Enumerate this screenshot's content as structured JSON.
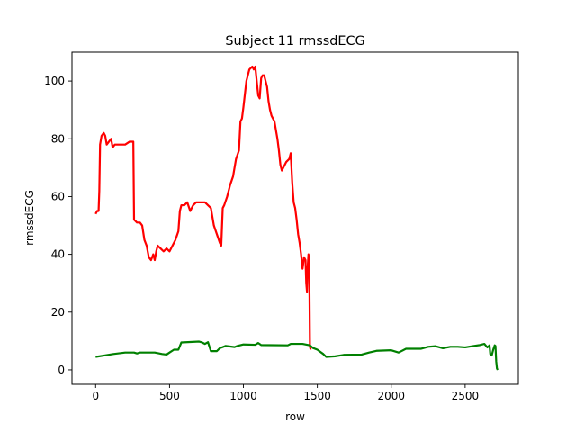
{
  "chart_data": {
    "type": "line",
    "title": "Subject 11 rmssdECG",
    "xlabel": "row",
    "ylabel": "rmssdECG",
    "xlim": [
      -160,
      2860
    ],
    "ylim": [
      -5,
      110
    ],
    "xticks": [
      0,
      500,
      1000,
      1500,
      2000,
      2500
    ],
    "yticks": [
      0,
      20,
      40,
      60,
      80,
      100
    ],
    "grid": false,
    "legend": "none",
    "series": [
      {
        "color": "#ff0000",
        "points": [
          [
            0,
            54
          ],
          [
            10,
            55
          ],
          [
            20,
            55
          ],
          [
            25,
            62
          ],
          [
            30,
            78
          ],
          [
            40,
            81
          ],
          [
            55,
            82
          ],
          [
            65,
            81
          ],
          [
            75,
            78
          ],
          [
            90,
            79
          ],
          [
            105,
            80
          ],
          [
            115,
            77
          ],
          [
            130,
            78
          ],
          [
            160,
            78
          ],
          [
            200,
            78
          ],
          [
            230,
            79
          ],
          [
            255,
            79
          ],
          [
            260,
            52
          ],
          [
            280,
            51
          ],
          [
            300,
            51
          ],
          [
            315,
            50
          ],
          [
            330,
            45
          ],
          [
            345,
            43
          ],
          [
            360,
            39
          ],
          [
            375,
            38
          ],
          [
            390,
            40
          ],
          [
            400,
            38
          ],
          [
            410,
            41
          ],
          [
            420,
            43
          ],
          [
            440,
            42
          ],
          [
            460,
            41
          ],
          [
            480,
            42
          ],
          [
            500,
            41
          ],
          [
            520,
            43
          ],
          [
            540,
            45
          ],
          [
            560,
            48
          ],
          [
            570,
            55
          ],
          [
            580,
            57
          ],
          [
            600,
            57
          ],
          [
            620,
            58
          ],
          [
            640,
            55
          ],
          [
            660,
            57
          ],
          [
            680,
            58
          ],
          [
            710,
            58
          ],
          [
            740,
            58
          ],
          [
            760,
            57
          ],
          [
            780,
            56
          ],
          [
            800,
            50
          ],
          [
            820,
            47
          ],
          [
            840,
            44
          ],
          [
            850,
            43
          ],
          [
            860,
            56
          ],
          [
            870,
            57
          ],
          [
            890,
            60
          ],
          [
            910,
            64
          ],
          [
            930,
            67
          ],
          [
            950,
            73
          ],
          [
            970,
            76
          ],
          [
            980,
            86
          ],
          [
            990,
            87
          ],
          [
            1000,
            91
          ],
          [
            1020,
            100
          ],
          [
            1040,
            104
          ],
          [
            1060,
            105
          ],
          [
            1070,
            104
          ],
          [
            1080,
            105
          ],
          [
            1090,
            100
          ],
          [
            1100,
            95
          ],
          [
            1110,
            94
          ],
          [
            1120,
            101
          ],
          [
            1130,
            102
          ],
          [
            1140,
            102
          ],
          [
            1150,
            100
          ],
          [
            1160,
            98
          ],
          [
            1170,
            93
          ],
          [
            1180,
            90
          ],
          [
            1190,
            88
          ],
          [
            1210,
            86
          ],
          [
            1230,
            80
          ],
          [
            1240,
            76
          ],
          [
            1250,
            71
          ],
          [
            1260,
            69
          ],
          [
            1270,
            70
          ],
          [
            1290,
            72
          ],
          [
            1310,
            73
          ],
          [
            1320,
            75
          ],
          [
            1330,
            65
          ],
          [
            1340,
            58
          ],
          [
            1350,
            56
          ],
          [
            1360,
            52
          ],
          [
            1370,
            47
          ],
          [
            1380,
            44
          ],
          [
            1390,
            40
          ],
          [
            1400,
            35
          ],
          [
            1410,
            39
          ],
          [
            1420,
            38
          ],
          [
            1425,
            30
          ],
          [
            1430,
            27
          ],
          [
            1435,
            36
          ],
          [
            1440,
            40
          ],
          [
            1445,
            38
          ],
          [
            1450,
            8
          ],
          [
            1455,
            7
          ]
        ]
      },
      {
        "color": "#008000",
        "points": [
          [
            0,
            4.5
          ],
          [
            60,
            5
          ],
          [
            120,
            5.5
          ],
          [
            200,
            6
          ],
          [
            260,
            6
          ],
          [
            280,
            5.7
          ],
          [
            300,
            6
          ],
          [
            400,
            6
          ],
          [
            450,
            5.5
          ],
          [
            480,
            5.3
          ],
          [
            500,
            6
          ],
          [
            530,
            7
          ],
          [
            560,
            7
          ],
          [
            580,
            9.5
          ],
          [
            700,
            9.8
          ],
          [
            720,
            9.5
          ],
          [
            740,
            9
          ],
          [
            760,
            9.6
          ],
          [
            780,
            6.5
          ],
          [
            820,
            6.5
          ],
          [
            840,
            7.5
          ],
          [
            880,
            8.3
          ],
          [
            940,
            7.9
          ],
          [
            960,
            8.3
          ],
          [
            1000,
            8.8
          ],
          [
            1080,
            8.7
          ],
          [
            1100,
            9.3
          ],
          [
            1120,
            8.6
          ],
          [
            1300,
            8.5
          ],
          [
            1320,
            9
          ],
          [
            1400,
            9
          ],
          [
            1450,
            8.5
          ],
          [
            1470,
            7.6
          ],
          [
            1500,
            7
          ],
          [
            1540,
            5.5
          ],
          [
            1560,
            4.5
          ],
          [
            1620,
            4.7
          ],
          [
            1680,
            5.2
          ],
          [
            1800,
            5.3
          ],
          [
            1850,
            6
          ],
          [
            1900,
            6.6
          ],
          [
            2000,
            6.8
          ],
          [
            2050,
            6
          ],
          [
            2100,
            7.3
          ],
          [
            2200,
            7.3
          ],
          [
            2250,
            8
          ],
          [
            2300,
            8.2
          ],
          [
            2350,
            7.5
          ],
          [
            2400,
            8
          ],
          [
            2450,
            8
          ],
          [
            2500,
            7.8
          ],
          [
            2560,
            8.3
          ],
          [
            2600,
            8.6
          ],
          [
            2630,
            9
          ],
          [
            2650,
            7.8
          ],
          [
            2665,
            8.5
          ],
          [
            2670,
            5.5
          ],
          [
            2680,
            5
          ],
          [
            2690,
            7
          ],
          [
            2700,
            8.5
          ],
          [
            2705,
            8.3
          ],
          [
            2710,
            3
          ],
          [
            2715,
            0.5
          ],
          [
            2720,
            0
          ]
        ]
      }
    ]
  }
}
